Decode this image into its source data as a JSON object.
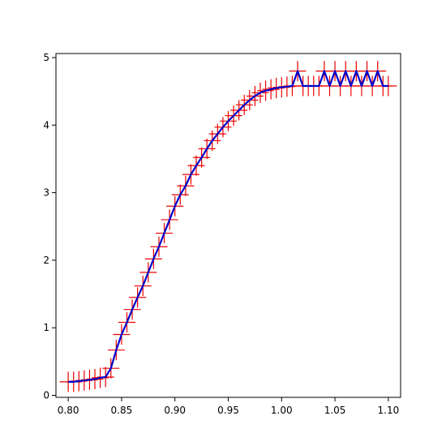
{
  "chart_data": {
    "type": "line",
    "title": "",
    "xlabel": "",
    "ylabel": "",
    "xlim": [
      0.7885,
      1.1115
    ],
    "ylim": [
      -0.03,
      5.06
    ],
    "xticks": [
      0.8,
      0.85,
      0.9,
      0.95,
      1.0,
      1.05,
      1.1
    ],
    "xtick_labels": [
      "0.80",
      "0.85",
      "0.90",
      "0.95",
      "1.00",
      "1.05",
      "1.10"
    ],
    "yticks": [
      0,
      1,
      2,
      3,
      4,
      5
    ],
    "ytick_labels": [
      "0",
      "1",
      "2",
      "3",
      "4",
      "5"
    ],
    "grid": false,
    "legend": null,
    "series": [
      {
        "color": "#0000cc",
        "errorbar_color": "#ee0000",
        "x": [
          0.8,
          0.805,
          0.81,
          0.815,
          0.82,
          0.825,
          0.83,
          0.835,
          0.84,
          0.845,
          0.85,
          0.855,
          0.86,
          0.865,
          0.87,
          0.875,
          0.88,
          0.885,
          0.89,
          0.895,
          0.9,
          0.905,
          0.91,
          0.915,
          0.92,
          0.925,
          0.93,
          0.935,
          0.94,
          0.945,
          0.95,
          0.955,
          0.96,
          0.965,
          0.97,
          0.975,
          0.98,
          0.985,
          0.99,
          0.995,
          1.0,
          1.005,
          1.01,
          1.015,
          1.02,
          1.025,
          1.03,
          1.035,
          1.04,
          1.045,
          1.05,
          1.055,
          1.06,
          1.065,
          1.07,
          1.075,
          1.08,
          1.085,
          1.09,
          1.095,
          1.1
        ],
        "y": [
          0.2,
          0.2,
          0.21,
          0.22,
          0.23,
          0.24,
          0.26,
          0.27,
          0.4,
          0.67,
          0.9,
          1.08,
          1.27,
          1.45,
          1.62,
          1.82,
          2.02,
          2.2,
          2.4,
          2.6,
          2.8,
          2.97,
          3.1,
          3.27,
          3.4,
          3.52,
          3.65,
          3.77,
          3.87,
          3.97,
          4.06,
          4.14,
          4.22,
          4.3,
          4.37,
          4.43,
          4.48,
          4.51,
          4.53,
          4.55,
          4.56,
          4.57,
          4.58,
          4.8,
          4.58,
          4.58,
          4.58,
          4.58,
          4.8,
          4.58,
          4.8,
          4.58,
          4.8,
          4.58,
          4.8,
          4.58,
          4.8,
          4.58,
          4.8,
          4.58,
          4.58
        ],
        "xerr": 0.008,
        "yerr": 0.15
      }
    ]
  }
}
